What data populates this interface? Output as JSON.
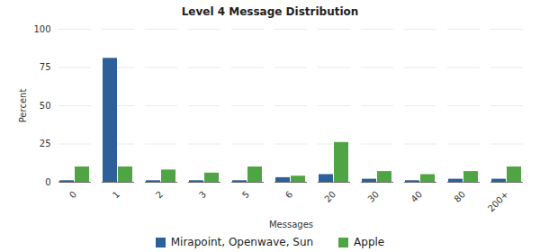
{
  "chart_data": {
    "type": "bar",
    "title": "Level 4 Message Distribution",
    "xlabel": "Messages",
    "ylabel": "Percent",
    "categories": [
      "0",
      "1",
      "2",
      "3",
      "5",
      "6",
      "20",
      "30",
      "40",
      "80",
      "200+"
    ],
    "series": [
      {
        "name": "Mirapoint, Openwave, Sun",
        "color": "#2d5f98",
        "values": [
          1,
          81,
          1,
          1,
          1,
          3,
          5,
          2,
          1,
          2,
          2
        ]
      },
      {
        "name": "Apple",
        "color": "#4fa544",
        "values": [
          10,
          10,
          8,
          6,
          10,
          4,
          26,
          7,
          5,
          7,
          10
        ]
      }
    ],
    "ylim": [
      0,
      100
    ],
    "yticks": [
      0,
      25,
      50,
      75,
      100
    ],
    "grid": true,
    "legend": "bottom"
  }
}
